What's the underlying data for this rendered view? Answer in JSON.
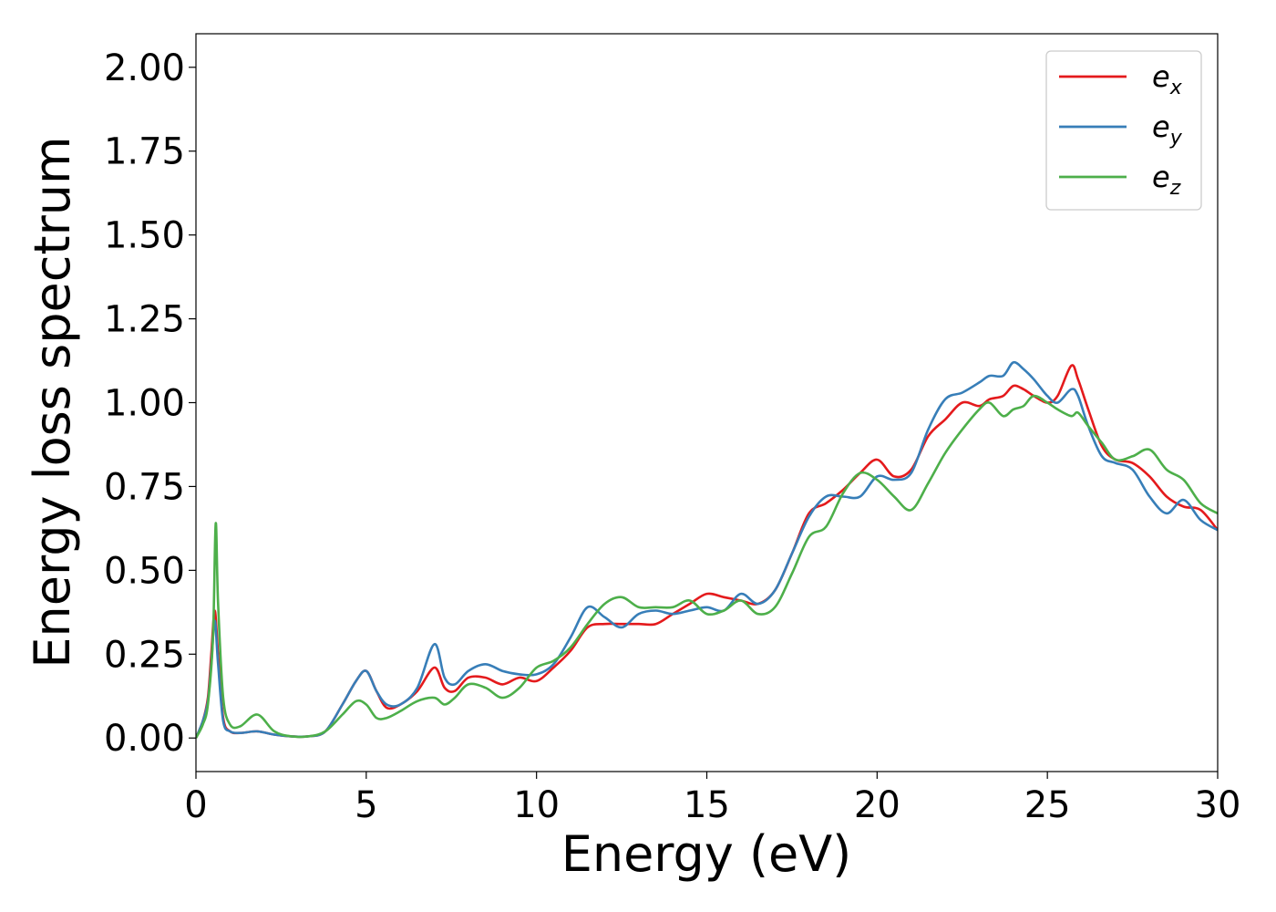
{
  "chart_data": {
    "type": "line",
    "title": "",
    "xlabel": "Energy (eV)",
    "ylabel": "Energy loss spectrum",
    "xlim": [
      0,
      30
    ],
    "ylim": [
      -0.1,
      2.1
    ],
    "xticks": [
      0,
      5,
      10,
      15,
      20,
      25,
      30
    ],
    "xtick_labels": [
      "0",
      "5",
      "10",
      "15",
      "20",
      "25",
      "30"
    ],
    "yticks": [
      0.0,
      0.25,
      0.5,
      0.75,
      1.0,
      1.25,
      1.5,
      1.75,
      2.0
    ],
    "ytick_labels": [
      "0.00",
      "0.25",
      "0.50",
      "0.75",
      "1.00",
      "1.25",
      "1.50",
      "1.75",
      "2.00"
    ],
    "grid": false,
    "legend_position": "top-right",
    "series": [
      {
        "name": "e",
        "subscript": "x",
        "color": "#e41a1c",
        "x": [
          0,
          0.2,
          0.35,
          0.45,
          0.55,
          0.65,
          0.8,
          1.0,
          1.3,
          1.8,
          2.3,
          2.8,
          3.3,
          3.8,
          4.3,
          4.7,
          5.0,
          5.3,
          5.6,
          6.0,
          6.5,
          7.0,
          7.3,
          7.6,
          8.0,
          8.5,
          9.0,
          9.5,
          10.0,
          10.5,
          11.0,
          11.5,
          12.0,
          12.5,
          13.0,
          13.5,
          14.0,
          14.5,
          15.0,
          15.5,
          16.0,
          16.5,
          17.0,
          17.5,
          18.0,
          18.5,
          19.0,
          19.5,
          20.0,
          20.5,
          21.0,
          21.5,
          22.0,
          22.5,
          23.0,
          23.3,
          23.7,
          24.0,
          24.3,
          24.6,
          25.0,
          25.3,
          25.7,
          25.9,
          26.2,
          26.6,
          27.0,
          27.5,
          28.0,
          28.5,
          29.0,
          29.5,
          30.0
        ],
        "y": [
          0.0,
          0.05,
          0.12,
          0.25,
          0.38,
          0.25,
          0.06,
          0.02,
          0.015,
          0.02,
          0.01,
          0.005,
          0.005,
          0.02,
          0.1,
          0.17,
          0.2,
          0.14,
          0.09,
          0.1,
          0.14,
          0.21,
          0.15,
          0.14,
          0.18,
          0.18,
          0.16,
          0.18,
          0.17,
          0.21,
          0.26,
          0.33,
          0.34,
          0.34,
          0.34,
          0.34,
          0.37,
          0.4,
          0.43,
          0.42,
          0.41,
          0.4,
          0.44,
          0.55,
          0.67,
          0.7,
          0.74,
          0.79,
          0.83,
          0.78,
          0.8,
          0.9,
          0.95,
          1.0,
          0.99,
          1.01,
          1.02,
          1.05,
          1.04,
          1.02,
          1.0,
          1.02,
          1.11,
          1.07,
          0.98,
          0.87,
          0.83,
          0.82,
          0.78,
          0.72,
          0.69,
          0.68,
          0.62
        ]
      },
      {
        "name": "e",
        "subscript": "y",
        "color": "#377eb8",
        "x": [
          0,
          0.2,
          0.35,
          0.45,
          0.55,
          0.65,
          0.8,
          1.0,
          1.3,
          1.8,
          2.3,
          2.8,
          3.3,
          3.8,
          4.3,
          4.7,
          5.0,
          5.3,
          5.6,
          6.0,
          6.5,
          7.0,
          7.3,
          7.6,
          8.0,
          8.5,
          9.0,
          9.5,
          10.0,
          10.5,
          11.0,
          11.5,
          12.0,
          12.5,
          13.0,
          13.5,
          14.0,
          14.5,
          15.0,
          15.5,
          16.0,
          16.5,
          17.0,
          17.5,
          18.0,
          18.5,
          19.0,
          19.5,
          20.0,
          20.5,
          21.0,
          21.5,
          22.0,
          22.5,
          23.0,
          23.3,
          23.7,
          24.0,
          24.3,
          24.6,
          25.0,
          25.3,
          25.7,
          25.9,
          26.2,
          26.6,
          27.0,
          27.5,
          28.0,
          28.5,
          29.0,
          29.5,
          30.0
        ],
        "y": [
          0.0,
          0.05,
          0.11,
          0.22,
          0.35,
          0.22,
          0.05,
          0.02,
          0.015,
          0.02,
          0.01,
          0.005,
          0.005,
          0.02,
          0.1,
          0.17,
          0.2,
          0.14,
          0.1,
          0.1,
          0.15,
          0.28,
          0.18,
          0.16,
          0.2,
          0.22,
          0.2,
          0.19,
          0.19,
          0.22,
          0.3,
          0.39,
          0.36,
          0.33,
          0.37,
          0.38,
          0.37,
          0.38,
          0.39,
          0.38,
          0.43,
          0.4,
          0.44,
          0.55,
          0.66,
          0.72,
          0.72,
          0.72,
          0.78,
          0.77,
          0.79,
          0.92,
          1.01,
          1.03,
          1.06,
          1.08,
          1.08,
          1.12,
          1.1,
          1.07,
          1.02,
          1.0,
          1.04,
          1.02,
          0.93,
          0.84,
          0.82,
          0.8,
          0.72,
          0.67,
          0.71,
          0.65,
          0.62
        ]
      },
      {
        "name": "e",
        "subscript": "z",
        "color": "#4daf4a",
        "x": [
          0,
          0.2,
          0.35,
          0.5,
          0.58,
          0.65,
          0.8,
          1.0,
          1.3,
          1.8,
          2.3,
          2.8,
          3.3,
          3.8,
          4.3,
          4.7,
          5.0,
          5.3,
          5.6,
          6.0,
          6.5,
          7.0,
          7.3,
          7.6,
          8.0,
          8.5,
          9.0,
          9.5,
          10.0,
          10.5,
          11.0,
          11.5,
          12.0,
          12.5,
          13.0,
          13.5,
          14.0,
          14.5,
          15.0,
          15.5,
          16.0,
          16.5,
          17.0,
          17.5,
          18.0,
          18.5,
          19.0,
          19.5,
          20.0,
          20.5,
          21.0,
          21.5,
          22.0,
          22.5,
          23.0,
          23.3,
          23.7,
          24.0,
          24.3,
          24.6,
          25.0,
          25.3,
          25.7,
          25.9,
          26.2,
          26.6,
          27.0,
          27.5,
          28.0,
          28.5,
          29.0,
          29.5,
          30.0
        ],
        "y": [
          0.0,
          0.04,
          0.1,
          0.3,
          0.64,
          0.4,
          0.12,
          0.04,
          0.035,
          0.07,
          0.02,
          0.005,
          0.005,
          0.02,
          0.07,
          0.11,
          0.1,
          0.06,
          0.06,
          0.08,
          0.11,
          0.12,
          0.1,
          0.12,
          0.16,
          0.15,
          0.12,
          0.15,
          0.21,
          0.23,
          0.27,
          0.34,
          0.4,
          0.42,
          0.39,
          0.39,
          0.39,
          0.41,
          0.37,
          0.38,
          0.41,
          0.37,
          0.39,
          0.49,
          0.6,
          0.63,
          0.73,
          0.79,
          0.77,
          0.72,
          0.68,
          0.76,
          0.85,
          0.92,
          0.98,
          1.0,
          0.96,
          0.98,
          0.99,
          1.02,
          1.0,
          0.98,
          0.96,
          0.97,
          0.93,
          0.88,
          0.83,
          0.84,
          0.86,
          0.8,
          0.77,
          0.7,
          0.67
        ]
      }
    ]
  }
}
